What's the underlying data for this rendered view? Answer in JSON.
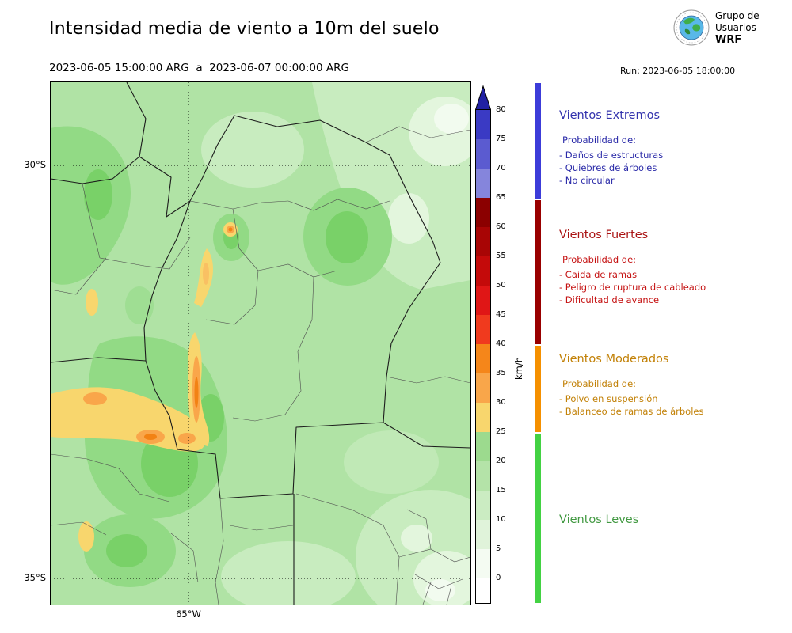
{
  "header": {
    "title": "Intensidad media de viento a 10m del suelo",
    "valid_period": "2023-06-05 15:00:00 ARG  a  2023-06-07 00:00:00 ARG",
    "run": "Run: 2023-06-05 18:00:00",
    "logo": {
      "line1": "Grupo de",
      "line2": "Usuarios",
      "line3": "WRF"
    }
  },
  "map": {
    "lat_labels": [
      "30°S",
      "35°S"
    ],
    "lon_label": "65°W"
  },
  "colorbar": {
    "unit": "km/h",
    "ticks": [
      0,
      5,
      10,
      15,
      20,
      25,
      30,
      35,
      40,
      45,
      50,
      55,
      60,
      65,
      70,
      75,
      80
    ],
    "over_color": "#2121a3",
    "levels": [
      {
        "range": "75-80",
        "color": "#3a3ac4"
      },
      {
        "range": "70-75",
        "color": "#5b5bd0"
      },
      {
        "range": "65-70",
        "color": "#8585dc"
      },
      {
        "range": "60-65",
        "color": "#8b0000"
      },
      {
        "range": "55-60",
        "color": "#a80505"
      },
      {
        "range": "50-55",
        "color": "#c40a0a"
      },
      {
        "range": "45-50",
        "color": "#e01616"
      },
      {
        "range": "40-45",
        "color": "#f03a1e"
      },
      {
        "range": "35-40",
        "color": "#f5861a"
      },
      {
        "range": "30-35",
        "color": "#f9a64a"
      },
      {
        "range": "25-30",
        "color": "#f8d66d"
      },
      {
        "range": "20-25",
        "color": "#9cda8e"
      },
      {
        "range": "15-20",
        "color": "#b4e3a8"
      },
      {
        "range": "10-15",
        "color": "#cbecc2"
      },
      {
        "range": "5-10",
        "color": "#e0f3da"
      },
      {
        "range": "0-5",
        "color": "#f4fbf2"
      },
      {
        "range": "<0",
        "color": "#ffffff"
      }
    ]
  },
  "legend": {
    "sections": [
      {
        "id": "extremos",
        "title": "Vientos Extremos",
        "color": "#3333ad",
        "bullet_color": "#2a2aa8",
        "bar_color": "#3c3cd9",
        "prob_label": "Probabilidad de:",
        "bullets": [
          "- Daños de estructuras",
          "- Quiebres de árboles",
          "- No circular"
        ]
      },
      {
        "id": "fuertes",
        "title": "Vientos Fuertes",
        "color": "#aa1414",
        "bullet_color": "#c51212",
        "bar_color": "#990000",
        "prob_label": "Probabilidad de:",
        "bullets": [
          "- Caida de ramas",
          "- Peligro de ruptura de cableado",
          "- Dificultad de avance"
        ]
      },
      {
        "id": "moderados",
        "title": "Vientos Moderados",
        "color": "#c28107",
        "bullet_color": "#c28107",
        "bar_color": "#f59000",
        "prob_label": "Probabilidad de:",
        "bullets": [
          "- Polvo en suspensión",
          "- Balanceo de ramas de árboles"
        ]
      },
      {
        "id": "leves",
        "title": "Vientos Leves",
        "color": "#429942",
        "bullet_color": "#429942",
        "bar_color": "#43d243",
        "bullets": []
      }
    ]
  },
  "chart_data": {
    "type": "heatmap",
    "title": "Intensidad media de viento a 10m del suelo",
    "valid_from": "2023-06-05 15:00:00 ARG",
    "valid_to": "2023-06-07 00:00:00 ARG",
    "run": "2023-06-05 18:00:00",
    "unit": "km/h",
    "colorbar_ticks": [
      0,
      5,
      10,
      15,
      20,
      25,
      30,
      35,
      40,
      45,
      50,
      55,
      60,
      65,
      70,
      75,
      80
    ],
    "colorbar_over": "80+",
    "categories": [
      {
        "name": "Vientos Leves",
        "range_kmh": [
          0,
          25
        ]
      },
      {
        "name": "Vientos Moderados",
        "range_kmh": [
          25,
          40
        ]
      },
      {
        "name": "Vientos Fuertes",
        "range_kmh": [
          40,
          65
        ]
      },
      {
        "name": "Vientos Extremos",
        "range_kmh": [
          65,
          85
        ]
      }
    ],
    "map_axes": {
      "lat_ticks": [
        "30°S",
        "35°S"
      ],
      "lon_ticks": [
        "65°W"
      ]
    },
    "field_summary": "Mostly light winds (5-20 km/h, greens) across the mapped provinces; moderate wind band (25-40 km/h, yellow/orange) along a north-south sierra ridge and an east-west band in the west-central area"
  }
}
